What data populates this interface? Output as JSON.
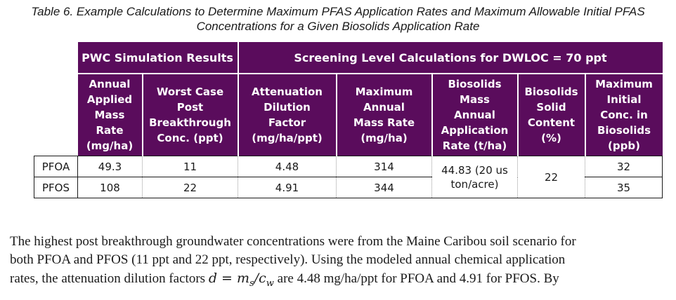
{
  "caption": {
    "line1": "Table 6. Example Calculations to Determine Maximum PFAS Application Rates and Maximum Allowable Initial PFAS",
    "line2": "Concentrations for a Given Biosolids Application Rate"
  },
  "table": {
    "group_headers": {
      "pwc": "PWC Simulation Results",
      "screening": "Screening Level Calculations for DWLOC = 70 ppt"
    },
    "columns": [
      [
        "Annual",
        "Applied",
        "Mass",
        "Rate",
        "(mg/ha)"
      ],
      [
        "Worst Case",
        "Post",
        "Breakthrough",
        "Conc. (ppt)"
      ],
      [
        "Attenuation",
        "Dilution",
        "Factor",
        "(mg/ha/ppt)"
      ],
      [
        "Maximum",
        "Annual",
        "Mass Rate",
        "(mg/ha)"
      ],
      [
        "Biosolids",
        "Mass",
        "Annual",
        "Application",
        "Rate (t/ha)"
      ],
      [
        "Biosolids",
        "Solid",
        "Content",
        "(%)"
      ],
      [
        "Maximum",
        "Initial",
        "Conc. in",
        "Biosolids",
        "(ppb)"
      ]
    ],
    "rows": [
      {
        "label": "PFOA",
        "annual_applied": "49.3",
        "worst_case": "11",
        "attenuation": "4.48",
        "max_annual": "314",
        "max_initial": "32"
      },
      {
        "label": "PFOS",
        "annual_applied": "108",
        "worst_case": "22",
        "attenuation": "4.91",
        "max_annual": "344",
        "max_initial": "35"
      }
    ],
    "merged": {
      "application_rate_line1": "44.83 (20 us",
      "application_rate_line2": "ton/acre)",
      "solid_content": "22"
    }
  },
  "paragraph": {
    "line1": "The highest post breakthrough groundwater concentrations were from the Maine Caribou soil scenario for",
    "line2": "both PFOA and PFOS (11 ppt and 22 ppt, respectively). Using the modeled annual chemical application",
    "line3_before": "rates, the attenuation dilution factors",
    "eq_d": "d",
    "eq_equals": " = ",
    "eq_m": "m",
    "eq_m_sub": "s",
    "eq_slash": "/",
    "eq_c": "c",
    "eq_c_sub": "w",
    "line3_after": "are 4.48 mg/ha/ppt for PFOA and 4.91 for PFOS. By"
  }
}
